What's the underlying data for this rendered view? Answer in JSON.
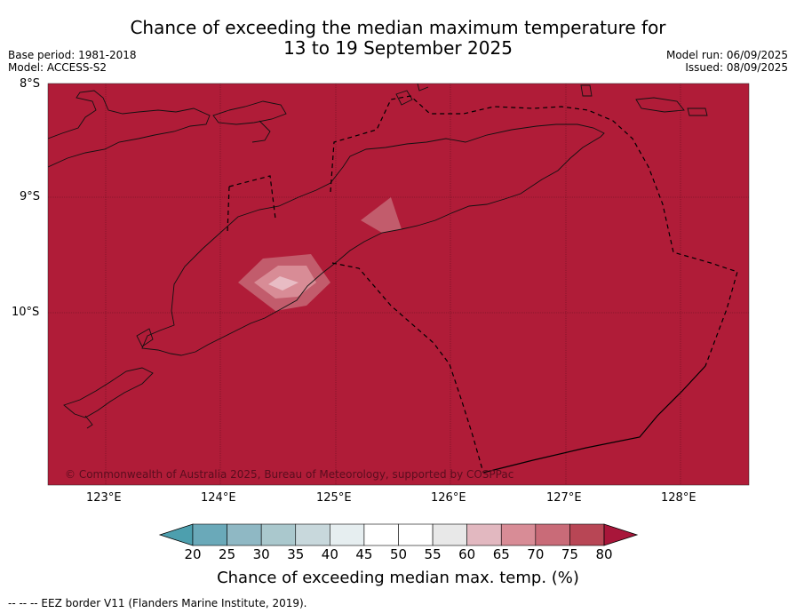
{
  "header": {
    "title_line1": "Chance of exceeding the median maximum temperature for",
    "title_line2": "13 to 19 September 2025",
    "base_period": "Base period: 1981-2018",
    "model": "Model: ACCESS-S2",
    "model_run": "Model run: 06/09/2025",
    "issued": "Issued: 08/09/2025"
  },
  "map": {
    "lat_labels": [
      "8°S",
      "9°S",
      "10°S"
    ],
    "lon_labels": [
      "123°E",
      "124°E",
      "125°E",
      "126°E",
      "127°E",
      "128°E"
    ],
    "copyright": "© Commonwealth of Australia 2025, Bureau of Meteorology, supported by COSPPac",
    "background_color": "#b01c38",
    "land_border": "coastline",
    "eez_border": "dashed"
  },
  "colorbar": {
    "ticks": [
      "20",
      "25",
      "30",
      "35",
      "40",
      "45",
      "50",
      "55",
      "60",
      "65",
      "70",
      "75",
      "80"
    ],
    "colors": [
      "#6aa9b9",
      "#8fb8c4",
      "#aac8cd",
      "#c8d8dc",
      "#e6eef0",
      "#ffffff",
      "#ffffff",
      "#e8e8e8",
      "#e2b8c0",
      "#d88c96",
      "#c96b78",
      "#b84655"
    ],
    "under_color": "#4d9fae",
    "over_color": "#a8163a",
    "title": "Chance of exceeding median max. temp. (%)"
  },
  "footer": {
    "eez_note": "--  --  -- EEZ border V11 (Flanders Marine Institute, 2019)."
  }
}
